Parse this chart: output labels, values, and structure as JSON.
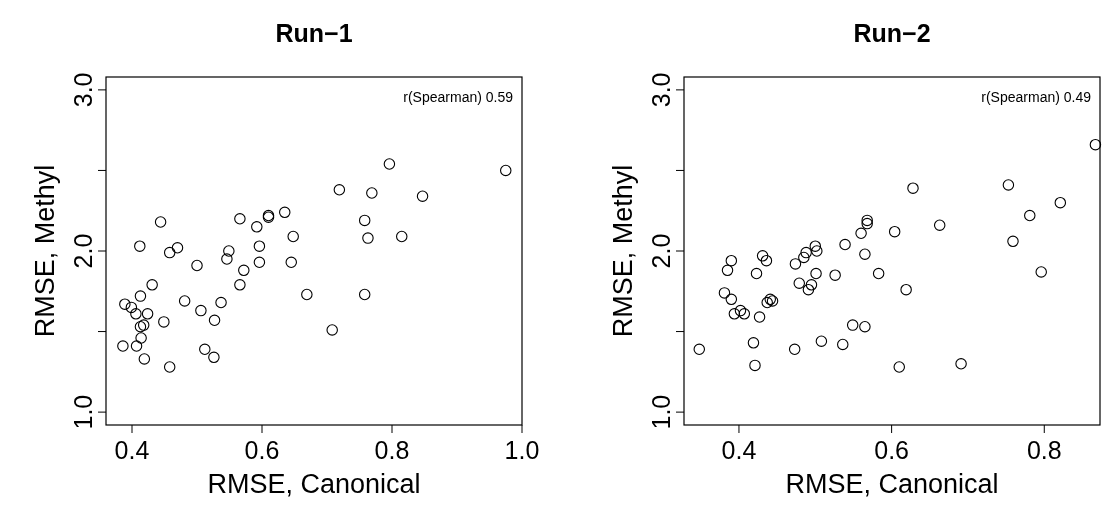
{
  "chart_data": [
    {
      "type": "scatter",
      "title": "Run−1",
      "xlabel": "RMSE, Canonical",
      "ylabel": "RMSE, Methyl",
      "annotations": [
        "r(Spearman) 0.59"
      ],
      "marker": "circle",
      "grid": false,
      "xlim": [
        0.36,
        1.0
      ],
      "xticks": [
        0.4,
        0.6,
        0.8,
        {
          "value": 1.0,
          "label": "1.0"
        }
      ],
      "ylim": [
        0.92,
        3.08
      ],
      "yticks": [
        {
          "value": 1.0,
          "label": "1.0"
        },
        {
          "value": 1.5,
          "label": null
        },
        {
          "value": 2.0,
          "label": "2.0"
        },
        {
          "value": 2.5,
          "label": null
        },
        {
          "value": 3.0,
          "label": "3.0"
        }
      ],
      "series": [
        {
          "color": "#000000",
          "x": [
            0.719,
            0.444,
            0.412,
            0.458,
            0.47,
            0.5,
            0.431,
            0.413,
            0.389,
            0.399,
            0.406,
            0.424,
            0.418,
            0.413,
            0.449,
            0.481,
            0.506,
            0.527,
            0.537,
            0.414,
            0.386,
            0.407,
            0.419,
            0.458,
            0.512,
            0.526,
            0.566,
            0.592,
            0.61,
            0.61,
            0.635,
            0.648,
            0.596,
            0.549,
            0.546,
            0.596,
            0.645,
            0.572,
            0.566,
            0.669,
            0.708,
            0.796,
            0.975,
            0.769,
            0.847,
            0.758,
            0.763,
            0.815,
            0.758
          ],
          "values": [
            2.38,
            2.18,
            2.03,
            1.99,
            2.02,
            1.91,
            1.79,
            1.72,
            1.67,
            1.65,
            1.61,
            1.61,
            1.54,
            1.53,
            1.56,
            1.69,
            1.63,
            1.57,
            1.68,
            1.46,
            1.41,
            1.41,
            1.33,
            1.28,
            1.39,
            1.34,
            2.2,
            2.15,
            2.22,
            2.21,
            2.24,
            2.09,
            2.03,
            2.0,
            1.95,
            1.93,
            1.93,
            1.88,
            1.79,
            1.73,
            1.51,
            2.54,
            2.5,
            2.36,
            2.34,
            2.19,
            2.08,
            2.09,
            1.73
          ]
        }
      ]
    },
    {
      "type": "scatter",
      "title": "Run−2",
      "xlabel": "RMSE, Canonical",
      "ylabel": "RMSE, Methyl",
      "annotations": [
        "r(Spearman) 0.49"
      ],
      "marker": "circle",
      "grid": false,
      "xlim": [
        0.328,
        0.873
      ],
      "xticks": [
        0.4,
        0.6,
        0.8
      ],
      "ylim": [
        0.92,
        3.08
      ],
      "yticks": [
        {
          "value": 1.0,
          "label": "1.0"
        },
        {
          "value": 1.5,
          "label": null
        },
        {
          "value": 2.0,
          "label": "2.0"
        },
        {
          "value": 2.5,
          "label": null
        },
        {
          "value": 3.0,
          "label": "3.0"
        }
      ],
      "series": [
        {
          "color": "#000000",
          "x": [
            0.348,
            0.628,
            0.568,
            0.568,
            0.56,
            0.604,
            0.539,
            0.5,
            0.502,
            0.488,
            0.485,
            0.474,
            0.431,
            0.436,
            0.39,
            0.385,
            0.423,
            0.501,
            0.526,
            0.565,
            0.583,
            0.479,
            0.495,
            0.491,
            0.619,
            0.381,
            0.39,
            0.437,
            0.441,
            0.444,
            0.402,
            0.394,
            0.407,
            0.427,
            0.549,
            0.565,
            0.419,
            0.473,
            0.508,
            0.536,
            0.421,
            0.61,
            0.867,
            0.753,
            0.821,
            0.781,
            0.663,
            0.759,
            0.796,
            0.691
          ],
          "values": [
            1.39,
            2.39,
            2.19,
            2.17,
            2.11,
            2.12,
            2.04,
            2.03,
            2.0,
            1.99,
            1.96,
            1.92,
            1.97,
            1.94,
            1.94,
            1.88,
            1.86,
            1.86,
            1.85,
            1.98,
            1.86,
            1.8,
            1.79,
            1.76,
            1.76,
            1.74,
            1.7,
            1.68,
            1.7,
            1.69,
            1.63,
            1.61,
            1.61,
            1.59,
            1.54,
            1.53,
            1.43,
            1.39,
            1.44,
            1.42,
            1.29,
            1.28,
            2.66,
            2.41,
            2.3,
            2.22,
            2.16,
            2.06,
            1.87,
            1.3
          ]
        }
      ]
    }
  ]
}
